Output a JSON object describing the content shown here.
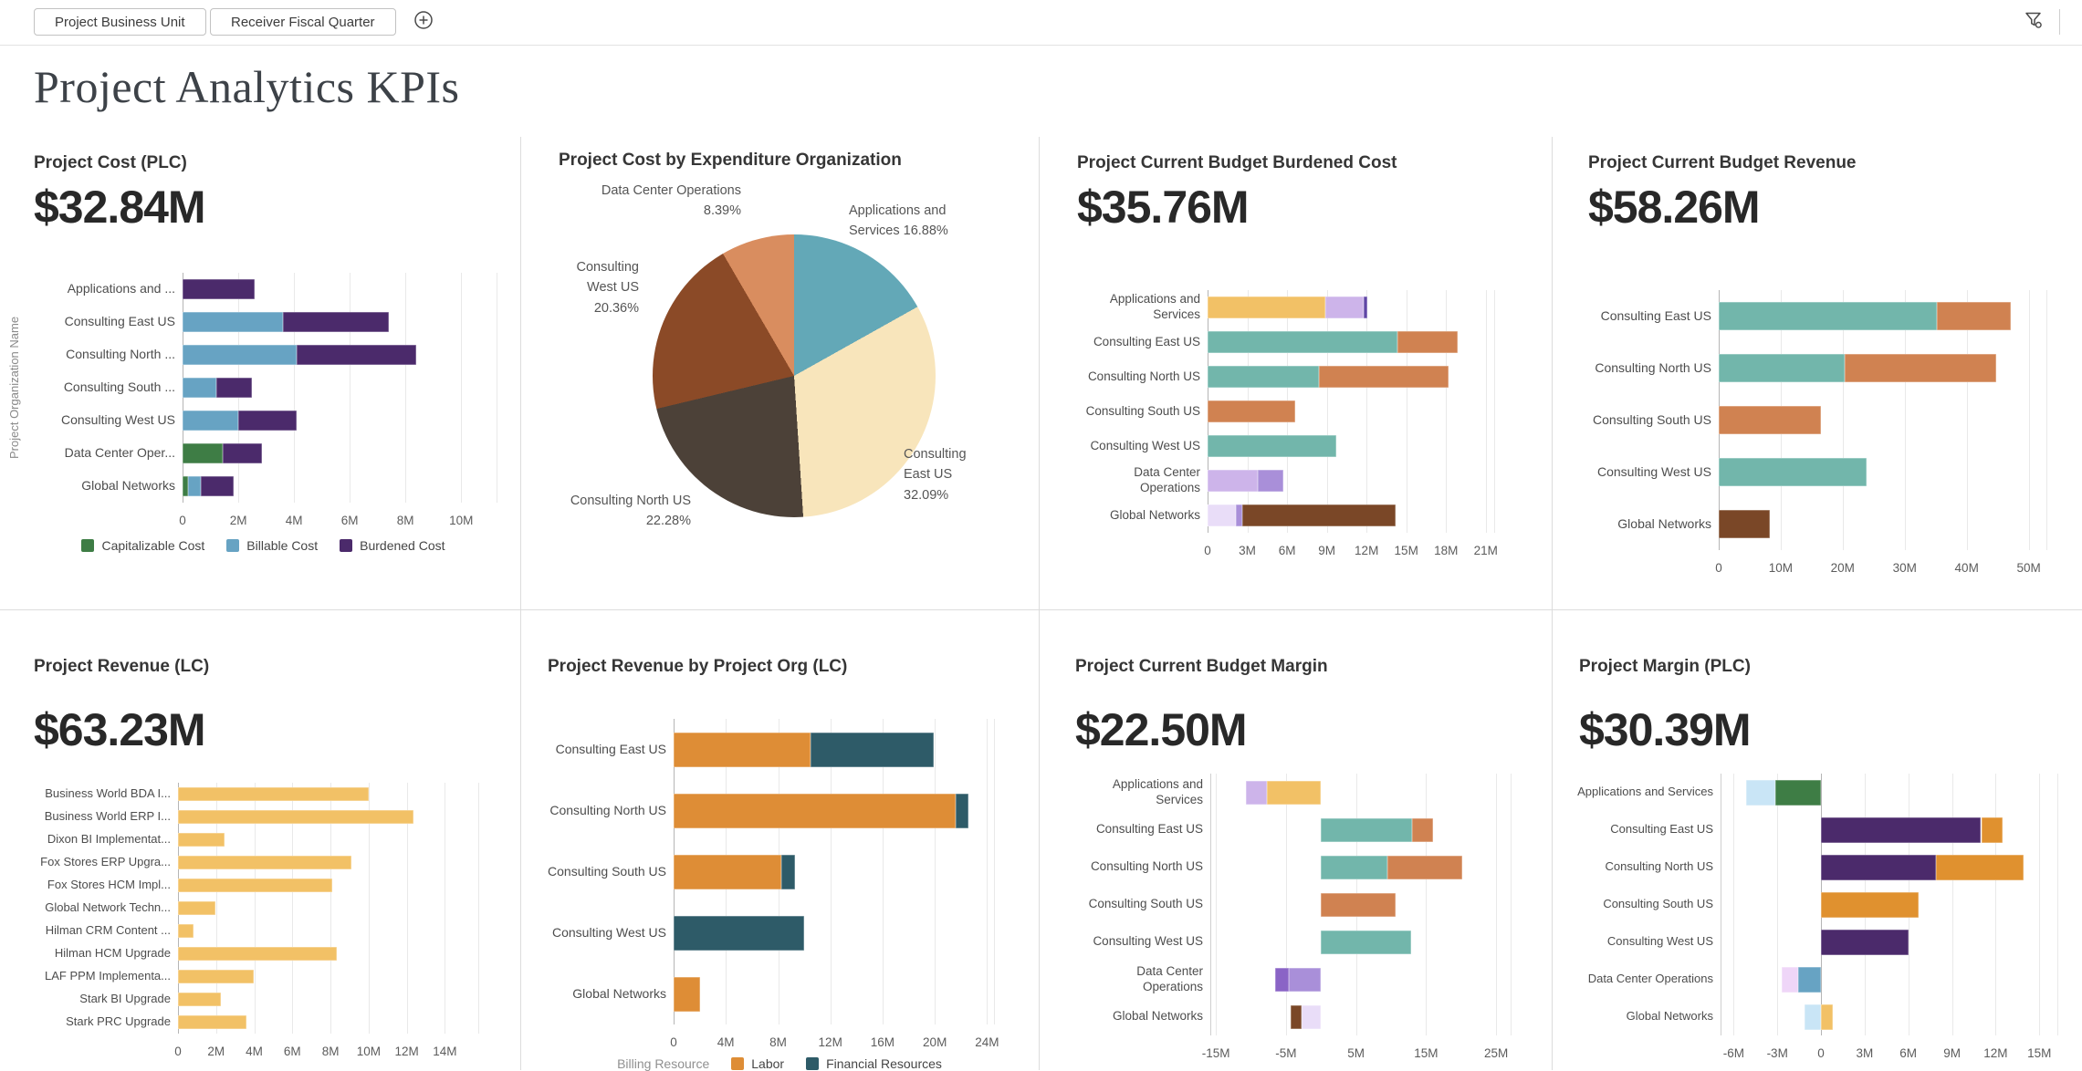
{
  "toolbar": {
    "filters": [
      {
        "label": "Project Business Unit"
      },
      {
        "label": "Receiver Fiscal Quarter"
      }
    ],
    "add_filter_icon": "plus-circle-icon",
    "filter_menu_icon": "funnel-gear-icon"
  },
  "page_title": "Project Analytics KPIs",
  "palette": {
    "teal": "#72B6AB",
    "orange": "#D08251",
    "gold": "#F2C166",
    "brown": "#7A4727",
    "purple": "#4B2A6B",
    "green": "#3E7D45",
    "blue": "#67A3C3",
    "labor_orange": "#DE8D36",
    "financial_teal": "#2E5B68",
    "lavender": "#CDB4EA",
    "pale_lavender": "#E9DDF8",
    "purple_soft": "#A98FD9",
    "purple_med": "#8A64C6",
    "violet": "#5F46A5",
    "light_blue": "#C9E5F6",
    "pink_lavender": "#EFD6F8",
    "orange_bright": "#E0912F",
    "pie_teal": "#63A8B7",
    "pie_cream": "#F8E5BB",
    "pie_dark": "#4C4138",
    "pie_brown": "#8B4A27",
    "pie_terracotta": "#D98D5F"
  },
  "chart_data": [
    {
      "type": "bar",
      "title": "Project Cost (PLC)",
      "kpi": "$32.84M",
      "ylabel": "Project Organization Name",
      "unit": "millions USD",
      "xlim": [
        0,
        11.3
      ],
      "ticks": [
        0,
        2,
        4,
        6,
        8,
        10
      ],
      "tick_labels": [
        "0",
        "2M",
        "4M",
        "6M",
        "8M",
        "10M"
      ],
      "legend": {
        "items": [
          {
            "label": "Capitalizable Cost",
            "color": "green"
          },
          {
            "label": "Billable Cost",
            "color": "blue"
          },
          {
            "label": "Burdened Cost",
            "color": "purple"
          }
        ]
      },
      "rows": [
        {
          "label": "Applications and ...",
          "segments": [
            {
              "color": "purple",
              "value": 2.6
            }
          ]
        },
        {
          "label": "Consulting East US",
          "segments": [
            {
              "color": "blue",
              "value": 3.6
            },
            {
              "color": "purple",
              "value": 3.8
            }
          ]
        },
        {
          "label": "Consulting North ...",
          "segments": [
            {
              "color": "blue",
              "value": 4.1
            },
            {
              "color": "purple",
              "value": 4.3
            }
          ]
        },
        {
          "label": "Consulting South ...",
          "segments": [
            {
              "color": "blue",
              "value": 1.2
            },
            {
              "color": "purple",
              "value": 1.3
            }
          ]
        },
        {
          "label": "Consulting West US",
          "segments": [
            {
              "color": "blue",
              "value": 2.0
            },
            {
              "color": "purple",
              "value": 2.1
            }
          ]
        },
        {
          "label": "Data Center Oper...",
          "segments": [
            {
              "color": "green",
              "value": 1.45
            },
            {
              "color": "purple",
              "value": 1.4
            }
          ]
        },
        {
          "label": "Global Networks",
          "segments": [
            {
              "color": "green",
              "value": 0.2
            },
            {
              "color": "blue",
              "value": 0.45
            },
            {
              "color": "purple",
              "value": 1.2
            }
          ]
        }
      ]
    },
    {
      "type": "pie",
      "title": "Project Cost by Expenditure Organization",
      "slices": [
        {
          "label": "Applications and Services",
          "pct": 16.88,
          "color": "pie_teal",
          "label_lines": [
            "Applications and",
            "Services 16.88%"
          ]
        },
        {
          "label": "Consulting East US",
          "pct": 32.09,
          "color": "pie_cream",
          "label_lines": [
            "Consulting",
            "East US",
            "32.09%"
          ]
        },
        {
          "label": "Consulting North US",
          "pct": 22.28,
          "color": "pie_dark",
          "label_lines": [
            "Consulting North US",
            "22.28%"
          ]
        },
        {
          "label": "Consulting West US",
          "pct": 20.36,
          "color": "pie_brown",
          "label_lines": [
            "Consulting",
            "West US",
            "20.36%"
          ]
        },
        {
          "label": "Data Center Operations",
          "pct": 8.39,
          "color": "pie_terracotta",
          "label_lines": [
            "Data Center Operations",
            "8.39%"
          ]
        }
      ]
    },
    {
      "type": "bar",
      "title": "Project Current Budget Burdened Cost",
      "kpi": "$35.76M",
      "unit": "millions USD",
      "xlim": [
        0,
        21.7
      ],
      "ticks": [
        0,
        3,
        6,
        9,
        12,
        15,
        18,
        21
      ],
      "tick_labels": [
        "0",
        "3M",
        "6M",
        "9M",
        "12M",
        "15M",
        "18M",
        "21M"
      ],
      "rows": [
        {
          "label": "Applications and Services",
          "segments": [
            {
              "color": "gold",
              "value": 8.9
            },
            {
              "color": "lavender",
              "value": 2.9
            },
            {
              "color": "violet",
              "value": 0.25
            }
          ]
        },
        {
          "label": "Consulting East US",
          "segments": [
            {
              "color": "teal",
              "value": 14.3
            },
            {
              "color": "orange",
              "value": 4.6
            }
          ]
        },
        {
          "label": "Consulting North US",
          "segments": [
            {
              "color": "teal",
              "value": 8.4
            },
            {
              "color": "orange",
              "value": 9.8
            }
          ]
        },
        {
          "label": "Consulting South US",
          "segments": [
            {
              "color": "orange",
              "value": 6.6
            }
          ]
        },
        {
          "label": "Consulting West US",
          "segments": [
            {
              "color": "teal",
              "value": 9.7
            }
          ]
        },
        {
          "label": "Data Center Operations",
          "segments": [
            {
              "color": "lavender",
              "value": 3.8
            },
            {
              "color": "purple_soft",
              "value": 1.9
            }
          ]
        },
        {
          "label": "Global Networks",
          "segments": [
            {
              "color": "pale_lavender",
              "value": 2.1
            },
            {
              "color": "purple_soft",
              "value": 0.5
            },
            {
              "color": "brown",
              "value": 11.6
            }
          ]
        }
      ]
    },
    {
      "type": "bar",
      "title": "Project Current Budget Revenue",
      "kpi": "$58.26M",
      "unit": "millions USD",
      "xlim": [
        0,
        53
      ],
      "ticks": [
        0,
        10,
        20,
        30,
        40,
        50
      ],
      "tick_labels": [
        "0",
        "10M",
        "20M",
        "30M",
        "40M",
        "50M"
      ],
      "rows": [
        {
          "label": "Consulting East US",
          "segments": [
            {
              "color": "teal",
              "value": 35.2
            },
            {
              "color": "orange",
              "value": 11.9
            }
          ]
        },
        {
          "label": "Consulting North US",
          "segments": [
            {
              "color": "teal",
              "value": 20.3
            },
            {
              "color": "orange",
              "value": 24.5
            }
          ]
        },
        {
          "label": "Consulting South US",
          "segments": [
            {
              "color": "orange",
              "value": 16.5
            }
          ]
        },
        {
          "label": "Consulting West US",
          "segments": [
            {
              "color": "teal",
              "value": 23.8
            }
          ]
        },
        {
          "label": "Global Networks",
          "segments": [
            {
              "color": "brown",
              "value": 8.2
            }
          ]
        }
      ]
    },
    {
      "type": "bar",
      "title": "Project Revenue (LC)",
      "kpi": "$63.23M",
      "unit": "millions",
      "xlim": [
        0,
        15.8
      ],
      "ticks": [
        0,
        2,
        4,
        6,
        8,
        10,
        12,
        14
      ],
      "tick_labels": [
        "0",
        "2M",
        "4M",
        "6M",
        "8M",
        "10M",
        "12M",
        "14M"
      ],
      "rows": [
        {
          "label": "Business World BDA I...",
          "segments": [
            {
              "color": "gold",
              "value": 10.0
            }
          ]
        },
        {
          "label": "Business World ERP I...",
          "segments": [
            {
              "color": "gold",
              "value": 12.37
            }
          ]
        },
        {
          "label": "Dixon BI Implementat...",
          "segments": [
            {
              "color": "gold",
              "value": 2.46
            }
          ]
        },
        {
          "label": "Fox Stores ERP Upgra...",
          "segments": [
            {
              "color": "gold",
              "value": 9.1
            }
          ]
        },
        {
          "label": "Fox Stores HCM Impl...",
          "segments": [
            {
              "color": "gold",
              "value": 8.1
            }
          ]
        },
        {
          "label": "Global Network Techn...",
          "segments": [
            {
              "color": "gold",
              "value": 1.95
            }
          ]
        },
        {
          "label": "Hilman CRM Content ...",
          "segments": [
            {
              "color": "gold",
              "value": 0.8
            }
          ]
        },
        {
          "label": "Hilman HCM Upgrade",
          "segments": [
            {
              "color": "gold",
              "value": 8.35
            }
          ]
        },
        {
          "label": "LAF PPM Implementa...",
          "segments": [
            {
              "color": "gold",
              "value": 3.97
            }
          ]
        },
        {
          "label": "Stark BI Upgrade",
          "segments": [
            {
              "color": "gold",
              "value": 2.26
            }
          ]
        },
        {
          "label": "Stark PRC Upgrade",
          "segments": [
            {
              "color": "gold",
              "value": 3.57
            }
          ]
        }
      ]
    },
    {
      "type": "bar",
      "title": "Project Revenue by Project Org (LC)",
      "unit": "millions",
      "xlim": [
        0,
        24.6
      ],
      "ticks": [
        0,
        4,
        8,
        12,
        16,
        20,
        24
      ],
      "tick_labels": [
        "0",
        "4M",
        "8M",
        "12M",
        "16M",
        "20M",
        "24M"
      ],
      "legend": {
        "title": "Billing Resource",
        "items": [
          {
            "label": "Labor",
            "color": "labor_orange"
          },
          {
            "label": "Financial Resources",
            "color": "financial_teal"
          }
        ]
      },
      "rows": [
        {
          "label": "Consulting East US",
          "segments": [
            {
              "color": "labor_orange",
              "value": 10.5
            },
            {
              "color": "financial_teal",
              "value": 9.4
            }
          ]
        },
        {
          "label": "Consulting North US",
          "segments": [
            {
              "color": "labor_orange",
              "value": 21.6
            },
            {
              "color": "financial_teal",
              "value": 0.95
            }
          ]
        },
        {
          "label": "Consulting South US",
          "segments": [
            {
              "color": "labor_orange",
              "value": 8.25
            },
            {
              "color": "financial_teal",
              "value": 1.05
            }
          ]
        },
        {
          "label": "Consulting West US",
          "segments": [
            {
              "color": "financial_teal",
              "value": 10.0
            }
          ]
        },
        {
          "label": "Global Networks",
          "segments": [
            {
              "color": "labor_orange",
              "value": 2.0
            }
          ]
        }
      ]
    },
    {
      "type": "bar",
      "title": "Project Current Budget Margin",
      "kpi": "$22.50M",
      "unit": "millions USD",
      "xlim": [
        -15.8,
        27.2
      ],
      "ticks": [
        -15,
        -5,
        5,
        15,
        25
      ],
      "tick_labels": [
        "-15M",
        "-5M",
        "5M",
        "15M",
        "25M"
      ],
      "rows": [
        {
          "label": "Applications and Services",
          "segments": [
            {
              "color": "gold",
              "value": -7.7
            },
            {
              "color": "lavender",
              "value": -3.0
            }
          ]
        },
        {
          "label": "Consulting East US",
          "segments": [
            {
              "color": "teal",
              "value": 13.0
            },
            {
              "color": "orange",
              "value": 2.95
            }
          ]
        },
        {
          "label": "Consulting North US",
          "segments": [
            {
              "color": "teal",
              "value": 9.5
            },
            {
              "color": "orange",
              "value": 10.7
            }
          ]
        },
        {
          "label": "Consulting South US",
          "segments": [
            {
              "color": "orange",
              "value": 10.65
            }
          ]
        },
        {
          "label": "Consulting West US",
          "segments": [
            {
              "color": "teal",
              "value": 12.85
            }
          ]
        },
        {
          "label": "Data Center Operations",
          "segments": [
            {
              "color": "purple_soft",
              "value": -4.6
            },
            {
              "color": "purple_med",
              "value": -2.0
            }
          ]
        },
        {
          "label": "Global Networks",
          "segments": [
            {
              "color": "pale_lavender",
              "value": -2.75
            },
            {
              "color": "brown",
              "value": -1.55
            }
          ]
        }
      ]
    },
    {
      "type": "bar",
      "title": "Project Margin (PLC)",
      "kpi": "$30.39M",
      "unit": "millions USD",
      "xlim": [
        -6.9,
        16.3
      ],
      "ticks": [
        -6,
        -3,
        0,
        3,
        6,
        9,
        12,
        15
      ],
      "tick_labels": [
        "-6M",
        "-3M",
        "0",
        "3M",
        "6M",
        "9M",
        "12M",
        "15M"
      ],
      "rows": [
        {
          "label": "Applications and Services",
          "segments": [
            {
              "color": "green",
              "value": -3.15
            },
            {
              "color": "light_blue",
              "value": -2.0
            }
          ]
        },
        {
          "label": "Consulting East US",
          "segments": [
            {
              "color": "purple",
              "value": 11.0
            },
            {
              "color": "orange_bright",
              "value": 1.5
            }
          ]
        },
        {
          "label": "Consulting North US",
          "segments": [
            {
              "color": "purple",
              "value": 7.9
            },
            {
              "color": "orange_bright",
              "value": 6.0
            }
          ]
        },
        {
          "label": "Consulting South US",
          "segments": [
            {
              "color": "orange_bright",
              "value": 6.7
            }
          ]
        },
        {
          "label": "Consulting West US",
          "segments": [
            {
              "color": "purple",
              "value": 6.0
            }
          ]
        },
        {
          "label": "Data Center Operations",
          "segments": [
            {
              "color": "blue",
              "value": -1.6
            },
            {
              "color": "pink_lavender",
              "value": -1.1
            }
          ]
        },
        {
          "label": "Global Networks",
          "segments": [
            {
              "color": "light_blue",
              "value": -1.15
            },
            {
              "color": "gold",
              "value": 0.8
            }
          ]
        }
      ]
    }
  ]
}
